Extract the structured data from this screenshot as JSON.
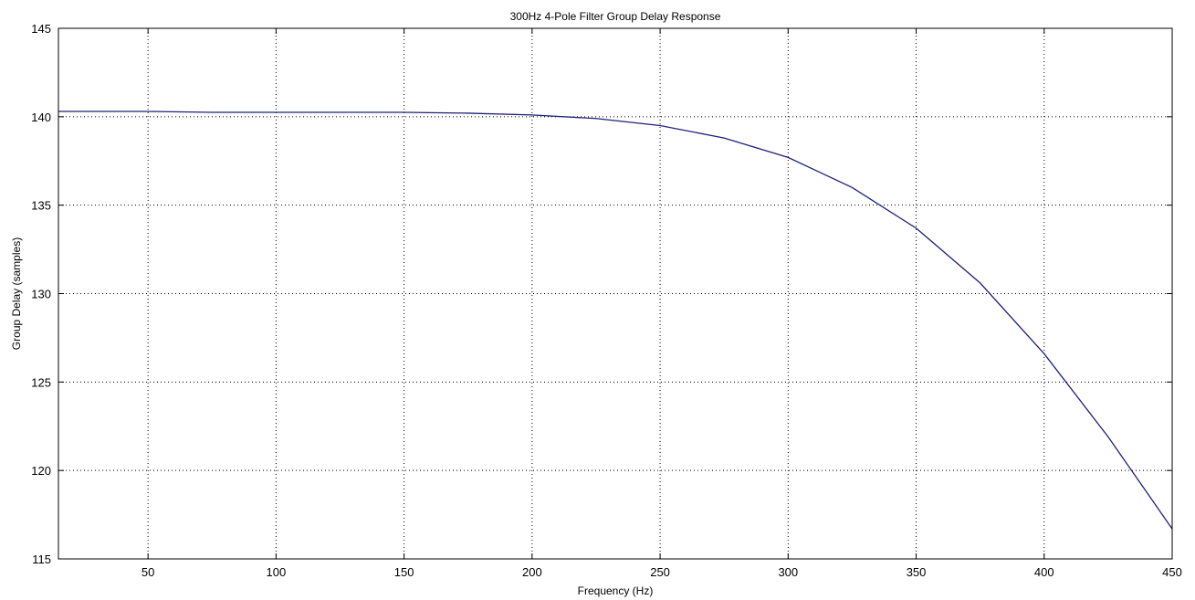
{
  "chart_data": {
    "type": "line",
    "title": "300Hz 4-Pole Filter Group Delay Response",
    "xlabel": "Frequency (Hz)",
    "ylabel": "Group Delay (samples)",
    "xlim": [
      15,
      450
    ],
    "ylim": [
      115,
      145
    ],
    "xticks": [
      50,
      100,
      150,
      200,
      250,
      300,
      350,
      400,
      450
    ],
    "yticks": [
      115,
      120,
      125,
      130,
      135,
      140,
      145
    ],
    "grid": true,
    "grid_style": "dotted",
    "line_color": "#1f1f7a",
    "series": [
      {
        "x": [
          15,
          25,
          50,
          75,
          100,
          125,
          150,
          175,
          200,
          225,
          250,
          275,
          300,
          325,
          350,
          375,
          400,
          425,
          450
        ],
        "y": [
          140.3,
          140.3,
          140.3,
          140.25,
          140.25,
          140.25,
          140.25,
          140.2,
          140.1,
          139.9,
          139.5,
          138.8,
          137.7,
          136.0,
          133.7,
          130.6,
          126.6,
          121.9,
          116.7
        ]
      }
    ]
  }
}
